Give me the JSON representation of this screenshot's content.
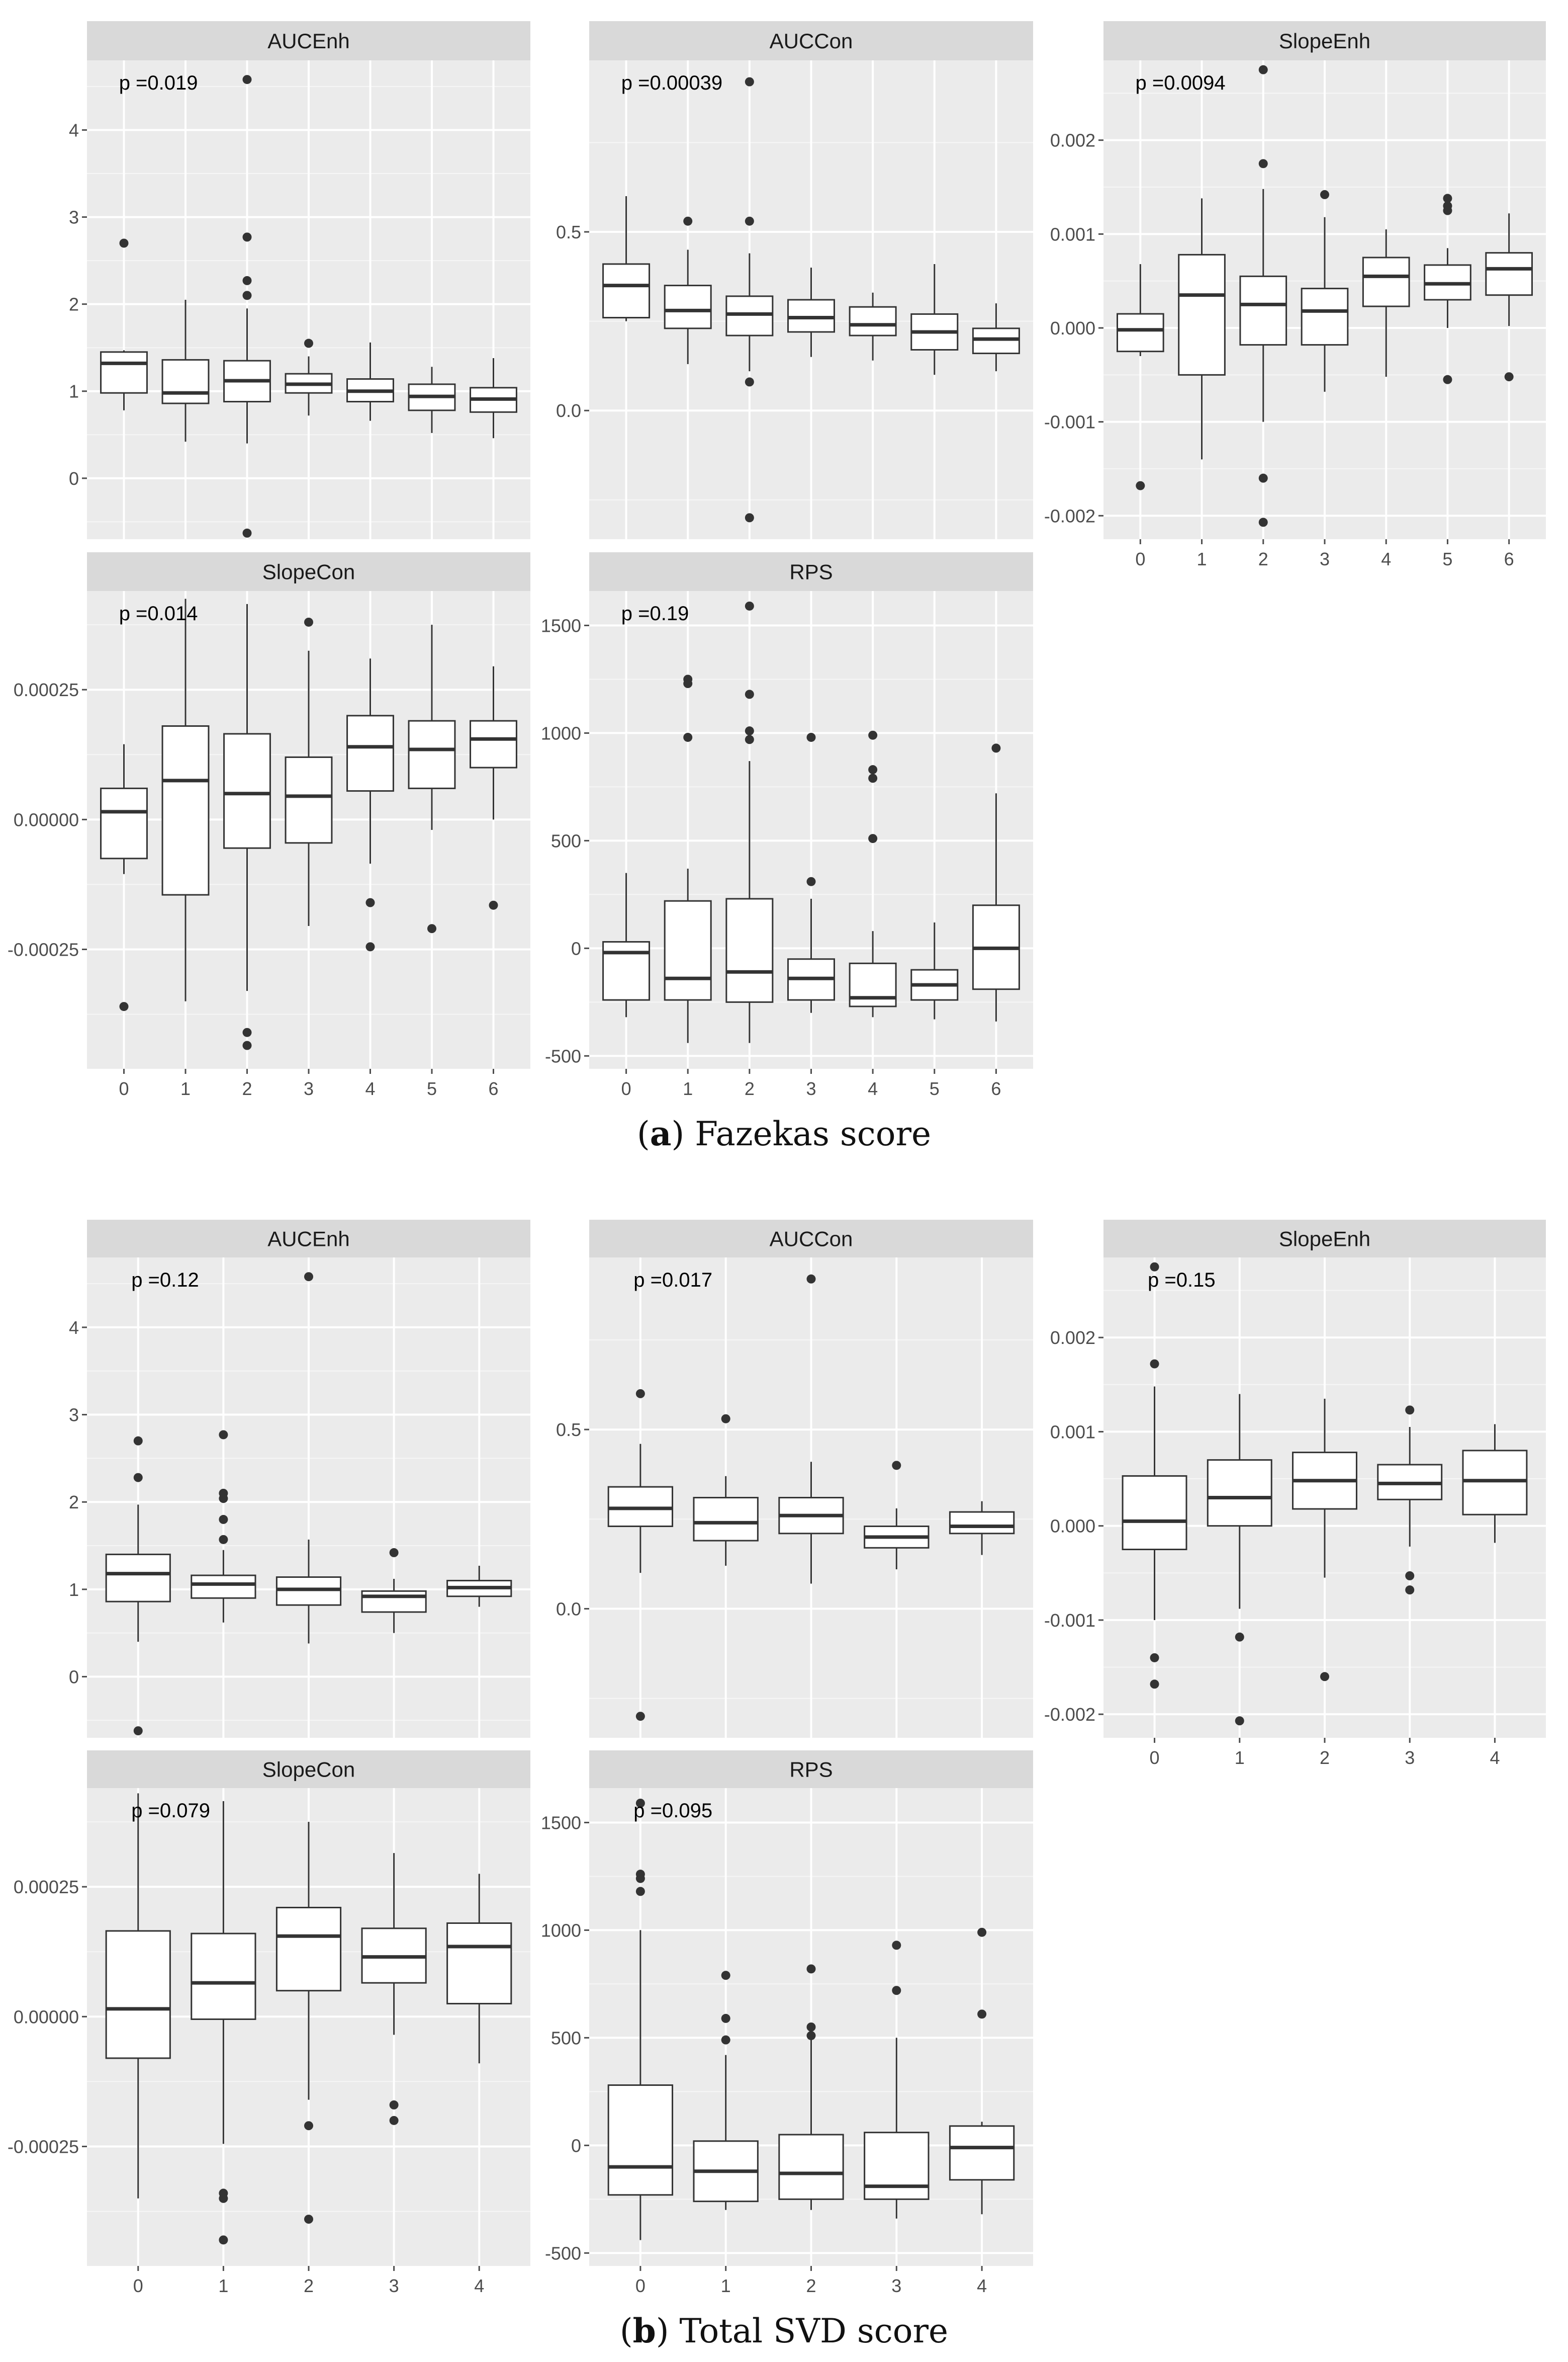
{
  "colors": {
    "panel_bg": "#ebebeb",
    "strip_bg": "#d9d9d9",
    "grid_major": "#ffffff",
    "box_line": "#333333",
    "text": "#1a1a1a",
    "axis_text": "#4d4d4d"
  },
  "captions": [
    {
      "label": "a",
      "text": "Fazekas score"
    },
    {
      "label": "b",
      "text": "Total SVD score"
    }
  ],
  "chart_data": [
    {
      "group": "a",
      "caption": "(a) Fazekas score",
      "type": "boxplot",
      "categories": [
        "0",
        "1",
        "2",
        "3",
        "4",
        "5",
        "6"
      ],
      "panels": [
        {
          "title": "AUCEnh",
          "p_label": "p =0.019",
          "ylim": [
            -0.7,
            4.8
          ],
          "yticks": [
            0,
            1,
            2,
            3,
            4
          ],
          "ytick_labels": [
            "0",
            "1",
            "2",
            "3",
            "4"
          ],
          "boxes": [
            {
              "low": 0.78,
              "q1": 0.98,
              "med": 1.32,
              "q3": 1.45,
              "high": 1.47,
              "out": [
                2.7
              ]
            },
            {
              "low": 0.42,
              "q1": 0.86,
              "med": 0.98,
              "q3": 1.36,
              "high": 2.05,
              "out": []
            },
            {
              "low": 0.4,
              "q1": 0.88,
              "med": 1.12,
              "q3": 1.35,
              "high": 1.95,
              "out": [
                2.1,
                2.27,
                2.77,
                4.58,
                -0.63
              ]
            },
            {
              "low": 0.72,
              "q1": 0.98,
              "med": 1.08,
              "q3": 1.2,
              "high": 1.4,
              "out": [
                1.55
              ]
            },
            {
              "low": 0.66,
              "q1": 0.88,
              "med": 1.0,
              "q3": 1.14,
              "high": 1.56,
              "out": []
            },
            {
              "low": 0.52,
              "q1": 0.78,
              "med": 0.94,
              "q3": 1.08,
              "high": 1.28,
              "out": []
            },
            {
              "low": 0.46,
              "q1": 0.76,
              "med": 0.91,
              "q3": 1.04,
              "high": 1.38,
              "out": []
            }
          ]
        },
        {
          "title": "AUCCon",
          "p_label": "p =0.00039",
          "ylim": [
            -0.36,
            0.98
          ],
          "yticks": [
            0,
            0.5
          ],
          "ytick_labels": [
            "0.0",
            "0.5"
          ],
          "boxes": [
            {
              "low": 0.25,
              "q1": 0.26,
              "med": 0.35,
              "q3": 0.41,
              "high": 0.6,
              "out": []
            },
            {
              "low": 0.13,
              "q1": 0.23,
              "med": 0.28,
              "q3": 0.35,
              "high": 0.45,
              "out": [
                0.53
              ]
            },
            {
              "low": 0.11,
              "q1": 0.21,
              "med": 0.27,
              "q3": 0.32,
              "high": 0.44,
              "out": [
                0.53,
                0.92,
                0.08,
                -0.3
              ]
            },
            {
              "low": 0.15,
              "q1": 0.22,
              "med": 0.26,
              "q3": 0.31,
              "high": 0.4,
              "out": []
            },
            {
              "low": 0.14,
              "q1": 0.21,
              "med": 0.24,
              "q3": 0.29,
              "high": 0.33,
              "out": []
            },
            {
              "low": 0.1,
              "q1": 0.17,
              "med": 0.22,
              "q3": 0.27,
              "high": 0.41,
              "out": []
            },
            {
              "low": 0.11,
              "q1": 0.16,
              "med": 0.2,
              "q3": 0.23,
              "high": 0.3,
              "out": []
            }
          ]
        },
        {
          "title": "SlopeEnh",
          "p_label": "p =0.0094",
          "ylim": [
            -0.00225,
            0.00285
          ],
          "yticks": [
            -0.002,
            -0.001,
            0,
            0.001,
            0.002
          ],
          "ytick_labels": [
            "-0.002",
            "-0.001",
            "0.000",
            "0.001",
            "0.002"
          ],
          "boxes": [
            {
              "low": -0.0003,
              "q1": -0.00025,
              "med": -2e-05,
              "q3": 0.00015,
              "high": 0.00068,
              "out": [
                -0.00168
              ]
            },
            {
              "low": -0.0014,
              "q1": -0.0005,
              "med": 0.00035,
              "q3": 0.00078,
              "high": 0.00138,
              "out": []
            },
            {
              "low": -0.001,
              "q1": -0.00018,
              "med": 0.00025,
              "q3": 0.00055,
              "high": 0.00148,
              "out": [
                0.00175,
                0.00275,
                -0.0016,
                -0.00207
              ]
            },
            {
              "low": -0.00068,
              "q1": -0.00018,
              "med": 0.00018,
              "q3": 0.00042,
              "high": 0.00118,
              "out": [
                0.00142
              ]
            },
            {
              "low": -0.00052,
              "q1": 0.00023,
              "med": 0.00055,
              "q3": 0.00075,
              "high": 0.00105,
              "out": []
            },
            {
              "low": 0.0,
              "q1": 0.0003,
              "med": 0.00047,
              "q3": 0.00067,
              "high": 0.00085,
              "out": [
                0.00125,
                0.0013,
                0.00138,
                -0.00055
              ]
            },
            {
              "low": 2e-05,
              "q1": 0.00035,
              "med": 0.00063,
              "q3": 0.0008,
              "high": 0.00122,
              "out": [
                -0.00052
              ]
            }
          ]
        },
        {
          "title": "SlopeCon",
          "p_label": "p =0.014",
          "ylim": [
            -0.00048,
            0.00044
          ],
          "yticks": [
            -0.00025,
            0,
            0.00025
          ],
          "ytick_labels": [
            "-0.00025",
            "0.00000",
            "0.00025"
          ],
          "boxes": [
            {
              "low": -0.000105,
              "q1": -7.5e-05,
              "med": 1.5e-05,
              "q3": 6e-05,
              "high": 0.000145,
              "out": [
                -0.00036
              ]
            },
            {
              "low": -0.00035,
              "q1": -0.000145,
              "med": 7.5e-05,
              "q3": 0.00018,
              "high": 0.000425,
              "out": []
            },
            {
              "low": -0.00033,
              "q1": -5.5e-05,
              "med": 5e-05,
              "q3": 0.000165,
              "high": 0.000415,
              "out": [
                -0.00041,
                -0.000435
              ]
            },
            {
              "low": -0.000205,
              "q1": -4.5e-05,
              "med": 4.5e-05,
              "q3": 0.00012,
              "high": 0.000325,
              "out": [
                0.00038
              ]
            },
            {
              "low": -8.5e-05,
              "q1": 5.5e-05,
              "med": 0.00014,
              "q3": 0.0002,
              "high": 0.00031,
              "out": [
                -0.00016,
                -0.000245
              ]
            },
            {
              "low": -2e-05,
              "q1": 6e-05,
              "med": 0.000135,
              "q3": 0.00019,
              "high": 0.000375,
              "out": [
                -0.00021
              ]
            },
            {
              "low": 0.0,
              "q1": 0.0001,
              "med": 0.000155,
              "q3": 0.00019,
              "high": 0.000295,
              "out": [
                -0.000165
              ]
            }
          ]
        },
        {
          "title": "RPS",
          "p_label": "p =0.19",
          "ylim": [
            -560,
            1660
          ],
          "yticks": [
            -500,
            0,
            500,
            1000,
            1500
          ],
          "ytick_labels": [
            "-500",
            "0",
            "500",
            "1000",
            "1500"
          ],
          "boxes": [
            {
              "low": -320,
              "q1": -240,
              "med": -20,
              "q3": 30,
              "high": 350,
              "out": []
            },
            {
              "low": -440,
              "q1": -240,
              "med": -140,
              "q3": 220,
              "high": 370,
              "out": [
                980,
                1230,
                1250
              ]
            },
            {
              "low": -440,
              "q1": -250,
              "med": -110,
              "q3": 230,
              "high": 870,
              "out": [
                970,
                1010,
                1180,
                1590
              ]
            },
            {
              "low": -300,
              "q1": -240,
              "med": -140,
              "q3": -50,
              "high": 230,
              "out": [
                310,
                980
              ]
            },
            {
              "low": -320,
              "q1": -270,
              "med": -230,
              "q3": -70,
              "high": 80,
              "out": [
                510,
                790,
                830,
                990
              ]
            },
            {
              "low": -330,
              "q1": -240,
              "med": -170,
              "q3": -100,
              "high": 120,
              "out": []
            },
            {
              "low": -340,
              "q1": -190,
              "med": 0,
              "q3": 200,
              "high": 720,
              "out": [
                930
              ]
            }
          ]
        }
      ]
    },
    {
      "group": "b",
      "caption": "(b) Total SVD score",
      "type": "boxplot",
      "categories": [
        "0",
        "1",
        "2",
        "3",
        "4"
      ],
      "panels": [
        {
          "title": "AUCEnh",
          "p_label": "p =0.12",
          "ylim": [
            -0.7,
            4.8
          ],
          "yticks": [
            0,
            1,
            2,
            3,
            4
          ],
          "ytick_labels": [
            "0",
            "1",
            "2",
            "3",
            "4"
          ],
          "boxes": [
            {
              "low": 0.4,
              "q1": 0.86,
              "med": 1.18,
              "q3": 1.4,
              "high": 1.97,
              "out": [
                2.28,
                2.7,
                -0.62
              ]
            },
            {
              "low": 0.62,
              "q1": 0.9,
              "med": 1.06,
              "q3": 1.16,
              "high": 1.45,
              "out": [
                1.57,
                1.8,
                2.04,
                2.1,
                2.77
              ]
            },
            {
              "low": 0.38,
              "q1": 0.82,
              "med": 1.0,
              "q3": 1.14,
              "high": 1.57,
              "out": [
                4.58
              ]
            },
            {
              "low": 0.5,
              "q1": 0.74,
              "med": 0.92,
              "q3": 0.98,
              "high": 1.12,
              "out": [
                1.42
              ]
            },
            {
              "low": 0.8,
              "q1": 0.92,
              "med": 1.02,
              "q3": 1.1,
              "high": 1.27,
              "out": []
            }
          ]
        },
        {
          "title": "AUCCon",
          "p_label": "p =0.017",
          "ylim": [
            -0.36,
            0.98
          ],
          "yticks": [
            0,
            0.5
          ],
          "ytick_labels": [
            "0.0",
            "0.5"
          ],
          "boxes": [
            {
              "low": 0.1,
              "q1": 0.23,
              "med": 0.28,
              "q3": 0.34,
              "high": 0.46,
              "out": [
                0.6,
                -0.3
              ]
            },
            {
              "low": 0.12,
              "q1": 0.19,
              "med": 0.24,
              "q3": 0.31,
              "high": 0.37,
              "out": [
                0.53
              ]
            },
            {
              "low": 0.07,
              "q1": 0.21,
              "med": 0.26,
              "q3": 0.31,
              "high": 0.41,
              "out": [
                0.92
              ]
            },
            {
              "low": 0.11,
              "q1": 0.17,
              "med": 0.2,
              "q3": 0.23,
              "high": 0.28,
              "out": [
                0.4
              ]
            },
            {
              "low": 0.15,
              "q1": 0.21,
              "med": 0.23,
              "q3": 0.27,
              "high": 0.3,
              "out": []
            }
          ]
        },
        {
          "title": "SlopeEnh",
          "p_label": "p =0.15",
          "ylim": [
            -0.00225,
            0.00285
          ],
          "yticks": [
            -0.002,
            -0.001,
            0,
            0.001,
            0.002
          ],
          "ytick_labels": [
            "-0.002",
            "-0.001",
            "0.000",
            "0.001",
            "0.002"
          ],
          "boxes": [
            {
              "low": -0.001,
              "q1": -0.00025,
              "med": 5e-05,
              "q3": 0.00053,
              "high": 0.00148,
              "out": [
                0.00172,
                0.00275,
                -0.0014,
                -0.00168
              ]
            },
            {
              "low": -0.00088,
              "q1": 0.0,
              "med": 0.0003,
              "q3": 0.0007,
              "high": 0.0014,
              "out": [
                -0.00118,
                -0.00207
              ]
            },
            {
              "low": -0.00055,
              "q1": 0.00018,
              "med": 0.00048,
              "q3": 0.00078,
              "high": 0.00135,
              "out": [
                -0.0016
              ]
            },
            {
              "low": -0.00022,
              "q1": 0.00028,
              "med": 0.00045,
              "q3": 0.00065,
              "high": 0.00105,
              "out": [
                0.00123,
                -0.00053,
                -0.00068
              ]
            },
            {
              "low": -0.00018,
              "q1": 0.00012,
              "med": 0.00048,
              "q3": 0.0008,
              "high": 0.00108,
              "out": []
            }
          ]
        },
        {
          "title": "SlopeCon",
          "p_label": "p =0.079",
          "ylim": [
            -0.00048,
            0.00044
          ],
          "yticks": [
            -0.00025,
            0,
            0.00025
          ],
          "ytick_labels": [
            "-0.00025",
            "0.00000",
            "0.00025"
          ],
          "boxes": [
            {
              "low": -0.00035,
              "q1": -8e-05,
              "med": 1.5e-05,
              "q3": 0.000165,
              "high": 0.00043,
              "out": []
            },
            {
              "low": -0.000245,
              "q1": -5e-06,
              "med": 6.5e-05,
              "q3": 0.00016,
              "high": 0.000415,
              "out": [
                -0.00034,
                -0.00035,
                -0.00043
              ]
            },
            {
              "low": -0.00016,
              "q1": 5e-05,
              "med": 0.000155,
              "q3": 0.00021,
              "high": 0.000375,
              "out": [
                -0.00021,
                -0.00039
              ]
            },
            {
              "low": -3.5e-05,
              "q1": 6.5e-05,
              "med": 0.000115,
              "q3": 0.00017,
              "high": 0.000315,
              "out": [
                -0.00017,
                -0.0002
              ]
            },
            {
              "low": -9e-05,
              "q1": 2.5e-05,
              "med": 0.000135,
              "q3": 0.00018,
              "high": 0.000275,
              "out": []
            }
          ]
        },
        {
          "title": "RPS",
          "p_label": "p =0.095",
          "ylim": [
            -560,
            1660
          ],
          "yticks": [
            -500,
            0,
            500,
            1000,
            1500
          ],
          "ytick_labels": [
            "-500",
            "0",
            "500",
            "1000",
            "1500"
          ],
          "boxes": [
            {
              "low": -440,
              "q1": -230,
              "med": -100,
              "q3": 280,
              "high": 1000,
              "out": [
                1180,
                1240,
                1260,
                1590
              ]
            },
            {
              "low": -300,
              "q1": -260,
              "med": -120,
              "q3": 20,
              "high": 420,
              "out": [
                490,
                590,
                790
              ]
            },
            {
              "low": -300,
              "q1": -250,
              "med": -130,
              "q3": 50,
              "high": 490,
              "out": [
                510,
                550,
                820
              ]
            },
            {
              "low": -340,
              "q1": -250,
              "med": -190,
              "q3": 60,
              "high": 500,
              "out": [
                720,
                930
              ]
            },
            {
              "low": -320,
              "q1": -160,
              "med": -10,
              "q3": 90,
              "high": 110,
              "out": [
                610,
                990
              ]
            }
          ]
        }
      ]
    }
  ]
}
